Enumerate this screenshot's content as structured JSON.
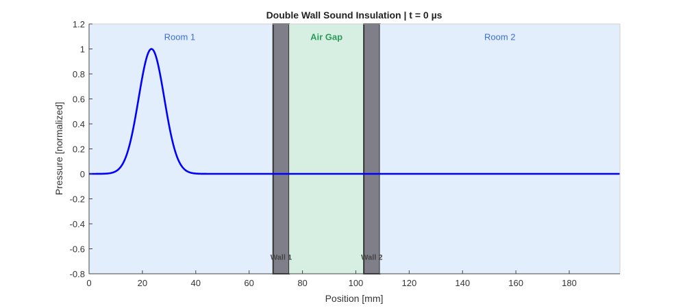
{
  "chart_data": {
    "type": "line",
    "title": "Double Wall Sound Insulation | t = 0 µs",
    "xlabel": "Position [mm]",
    "ylabel": "Pressure [normalized]",
    "xlim": [
      0,
      199
    ],
    "ylim": [
      -0.8,
      1.2
    ],
    "xticks": [
      0,
      20,
      40,
      60,
      80,
      100,
      120,
      140,
      160,
      180
    ],
    "yticks": [
      -0.8,
      -0.6,
      -0.4,
      -0.2,
      0,
      0.2,
      0.4,
      0.6,
      0.8,
      1,
      1.2
    ],
    "ytick_labels": [
      "-0.8",
      "-0.6",
      "-0.4",
      "-0.2",
      "0",
      "0.2",
      "0.4",
      "0.6",
      "0.8",
      "1",
      "1.2"
    ],
    "grid": false,
    "series": [
      {
        "name": "pressure",
        "color": "#0000ff",
        "model": "gaussian",
        "amplitude": 1.0,
        "center": 23.4,
        "sigma": 4.8,
        "x_range": [
          0,
          199
        ]
      }
    ],
    "regions": [
      {
        "name": "Room 1",
        "from": 0,
        "to": 69,
        "color": "#e3eefc",
        "label_color": "#3b6fd4",
        "label_x": 34,
        "label_y": 1.1
      },
      {
        "name": "Wall 1",
        "from": 69,
        "to": 75,
        "color": "#7f7f8a",
        "label_color": "#444444",
        "label_x": 72,
        "label_y": -0.66
      },
      {
        "name": "Air Gap",
        "from": 75,
        "to": 103,
        "color": "#d6efe2",
        "label_color": "#2e9a5a",
        "label_x": 89,
        "label_y": 1.1
      },
      {
        "name": "Wall 2",
        "from": 103,
        "to": 109,
        "color": "#7f7f8a",
        "label_color": "#444444",
        "label_x": 106,
        "label_y": -0.66
      },
      {
        "name": "Room 2",
        "from": 109,
        "to": 199,
        "color": "#e3eefc",
        "label_color": "#3b6fd4",
        "label_x": 154,
        "label_y": 1.1
      }
    ]
  }
}
